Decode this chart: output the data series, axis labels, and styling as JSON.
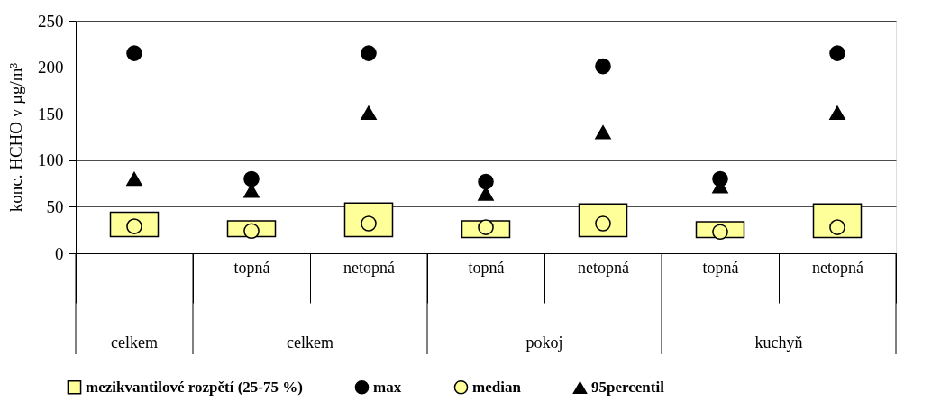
{
  "chart_data": {
    "type": "bar",
    "ylabel": "konc. HCHO v µg/m³",
    "categories": [
      null,
      "topná",
      "netopná",
      "topná",
      "netopná",
      "topná",
      "netopná"
    ],
    "annotations": [
      "celkem",
      "celkem",
      "pokoj",
      "kuchyň"
    ],
    "series": [
      {
        "name": "mezikvantilové rozpětí (25-75 %)",
        "color": "#ffff99",
        "base": [
          18,
          18,
          18,
          17,
          18,
          17,
          17
        ],
        "values": [
          26,
          17,
          36,
          18,
          35,
          17,
          36
        ]
      },
      {
        "name": "max",
        "type": "scatter",
        "marker": "circle",
        "color": "#000000",
        "values": [
          215,
          80,
          215,
          77,
          201,
          80,
          215
        ]
      },
      {
        "name": "median",
        "type": "scatter",
        "marker": "circle",
        "color": "#ffff99",
        "values": [
          29,
          24,
          32,
          28,
          32,
          23,
          28
        ]
      },
      {
        "name": "95percentil",
        "type": "scatter",
        "marker": "triangle",
        "color": "#000000",
        "values": [
          80,
          67,
          151,
          64,
          130,
          72,
          151
        ]
      }
    ],
    "ylim": [
      0,
      250
    ],
    "yticks": [
      0,
      50,
      100,
      150,
      200,
      250
    ],
    "grid": "y",
    "legend": "bottom"
  }
}
